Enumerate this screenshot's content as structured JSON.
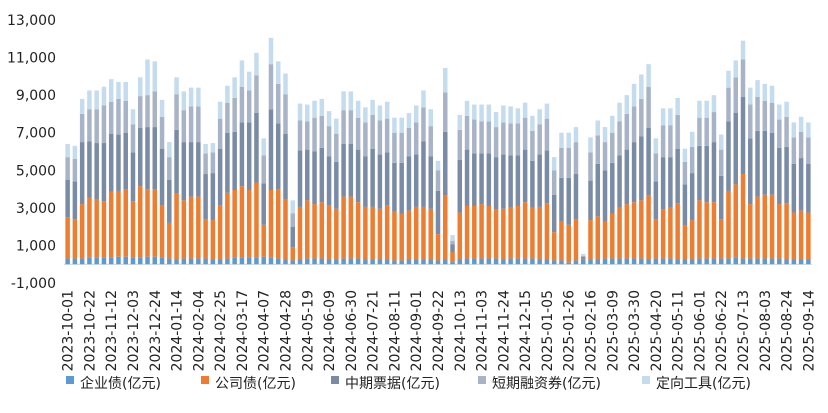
{
  "chart_data": {
    "type": "bar",
    "stacked": true,
    "categories": [
      "2023-10-01",
      "2023-10-08",
      "2023-10-15",
      "2023-10-22",
      "2023-10-29",
      "2023-11-05",
      "2023-11-12",
      "2023-11-19",
      "2023-11-26",
      "2023-12-03",
      "2023-12-10",
      "2023-12-17",
      "2023-12-24",
      "2023-12-31",
      "2024-01-07",
      "2024-01-14",
      "2024-01-21",
      "2024-01-28",
      "2024-02-04",
      "2024-02-11",
      "2024-02-18",
      "2024-02-25",
      "2024-03-03",
      "2024-03-10",
      "2024-03-17",
      "2024-03-24",
      "2024-03-31",
      "2024-04-07",
      "2024-04-14",
      "2024-04-21",
      "2024-04-28",
      "2024-05-05",
      "2024-05-12",
      "2024-05-19",
      "2024-05-26",
      "2024-06-02",
      "2024-06-09",
      "2024-06-16",
      "2024-06-23",
      "2024-06-30",
      "2024-07-07",
      "2024-07-14",
      "2024-07-21",
      "2024-07-28",
      "2024-08-04",
      "2024-08-11",
      "2024-08-18",
      "2024-08-25",
      "2024-09-01",
      "2024-09-08",
      "2024-09-15",
      "2024-09-22",
      "2024-09-29",
      "2024-10-06",
      "2024-10-13",
      "2024-10-20",
      "2024-10-27",
      "2024-11-03",
      "2024-11-10",
      "2024-11-17",
      "2024-11-24",
      "2024-12-01",
      "2024-12-08",
      "2024-12-15",
      "2024-12-22",
      "2024-12-29",
      "2025-01-05",
      "2025-01-12",
      "2025-01-19",
      "2025-01-26",
      "2025-02-02",
      "2025-02-09",
      "2025-02-16",
      "2025-02-23",
      "2025-03-02",
      "2025-03-09",
      "2025-03-16",
      "2025-03-23",
      "2025-03-30",
      "2025-04-06",
      "2025-04-13",
      "2025-04-20",
      "2025-04-27",
      "2025-05-04",
      "2025-05-11",
      "2025-05-18",
      "2025-05-25",
      "2025-06-01",
      "2025-06-08",
      "2025-06-15",
      "2025-06-22",
      "2025-06-29",
      "2025-07-06",
      "2025-07-13",
      "2025-07-20",
      "2025-07-27",
      "2025-08-03",
      "2025-08-10",
      "2025-08-17",
      "2025-08-24",
      "2025-08-31",
      "2025-09-07",
      "2025-09-14"
    ],
    "tick_labels": [
      "2023-10-01",
      "2023-10-22",
      "2023-11-12",
      "2023-12-03",
      "2023-12-24",
      "2024-01-14",
      "2024-02-04",
      "2024-02-25",
      "2024-03-17",
      "2024-04-07",
      "2024-04-28",
      "2024-05-19",
      "2024-06-09",
      "2024-06-30",
      "2024-07-21",
      "2024-08-11",
      "2024-09-01",
      "2024-09-22",
      "2024-10-13",
      "2024-11-03",
      "2024-11-24",
      "2024-12-15",
      "2025-01-05",
      "2025-01-26",
      "2025-02-16",
      "2025-03-09",
      "2025-03-30",
      "2025-04-20",
      "2025-05-11",
      "2025-06-01",
      "2025-06-22",
      "2025-07-13",
      "2025-08-03",
      "2025-08-24",
      "2025-09-14"
    ],
    "series": [
      {
        "name": "企业债(亿元)",
        "color": "#5b9bd5",
        "values": [
          300,
          300,
          300,
          350,
          350,
          350,
          350,
          400,
          400,
          350,
          350,
          400,
          400,
          350,
          300,
          250,
          300,
          300,
          300,
          300,
          250,
          250,
          300,
          350,
          350,
          350,
          350,
          400,
          350,
          300,
          250,
          200,
          250,
          300,
          300,
          300,
          250,
          250,
          300,
          300,
          300,
          250,
          250,
          250,
          250,
          200,
          200,
          250,
          250,
          250,
          250,
          200,
          250,
          150,
          250,
          300,
          300,
          300,
          300,
          300,
          250,
          300,
          300,
          300,
          300,
          250,
          250,
          200,
          200,
          100,
          200,
          250,
          250,
          250,
          300,
          300,
          300,
          300,
          300,
          300,
          250,
          300,
          300,
          300,
          250,
          250,
          250,
          300,
          300,
          300,
          300,
          300,
          350,
          300,
          300,
          300,
          300,
          300,
          300,
          250,
          250,
          250,
          250
        ]
      },
      {
        "name": "公司债(亿元)",
        "color": "#ed7d31",
        "values": [
          2200,
          2100,
          2900,
          3200,
          3100,
          3000,
          3500,
          3500,
          3600,
          3000,
          3800,
          3600,
          3600,
          2800,
          1900,
          3500,
          3100,
          3300,
          3300,
          2100,
          2100,
          2900,
          3500,
          3600,
          3800,
          3600,
          4000,
          1700,
          3600,
          3700,
          3200,
          700,
          2800,
          3100,
          2900,
          3000,
          2900,
          2700,
          3300,
          3300,
          3000,
          2800,
          2800,
          2700,
          2900,
          2600,
          2500,
          2600,
          2800,
          2800,
          2700,
          1400,
          3400,
          500,
          2500,
          2800,
          2800,
          2900,
          2800,
          2600,
          2700,
          2700,
          2800,
          3000,
          2700,
          2800,
          3000,
          1500,
          2100,
          2000,
          2200,
          50,
          2100,
          2300,
          2000,
          2400,
          2700,
          2900,
          3000,
          3100,
          3400,
          2100,
          2600,
          2700,
          3000,
          1800,
          2100,
          3100,
          3000,
          3000,
          2100,
          3600,
          3900,
          4500,
          2900,
          3300,
          3400,
          3400,
          2900,
          3000,
          2500,
          2600,
          2500
        ]
      },
      {
        "name": "中期票据(亿元)",
        "color": "#7a8ba6",
        "values": [
          2000,
          2000,
          3300,
          3000,
          3000,
          3100,
          3100,
          3000,
          3000,
          2600,
          3100,
          3300,
          3300,
          3000,
          2300,
          3400,
          3100,
          2900,
          2900,
          2400,
          2500,
          3000,
          3200,
          3100,
          3400,
          3600,
          3700,
          2200,
          4300,
          3500,
          3500,
          1100,
          3000,
          2700,
          2800,
          2900,
          2600,
          2500,
          2800,
          2800,
          2800,
          2700,
          3100,
          2900,
          2800,
          2600,
          2700,
          2900,
          2800,
          3500,
          2800,
          2300,
          3400,
          400,
          2800,
          3000,
          2800,
          2700,
          2800,
          2800,
          2900,
          2800,
          2700,
          2800,
          2500,
          2800,
          2800,
          2000,
          2300,
          2500,
          2400,
          100,
          2100,
          2800,
          2700,
          2700,
          2800,
          2900,
          3200,
          3400,
          3600,
          2000,
          2800,
          2700,
          2900,
          2200,
          2500,
          2900,
          3000,
          3200,
          2300,
          3700,
          3800,
          4100,
          3500,
          3500,
          3400,
          3300,
          3000,
          3000,
          2600,
          2800,
          2600
        ]
      },
      {
        "name": "短期融资券(亿元)",
        "color": "#a9b3c8",
        "values": [
          1200,
          1200,
          1500,
          1700,
          1800,
          2000,
          1700,
          1900,
          1700,
          1500,
          1700,
          1700,
          1900,
          1700,
          1200,
          1900,
          1700,
          1900,
          1900,
          1100,
          1100,
          1600,
          1600,
          1800,
          1900,
          1700,
          2000,
          1500,
          2400,
          2100,
          2100,
          700,
          1600,
          1500,
          1800,
          1700,
          1600,
          1500,
          1800,
          1800,
          1700,
          1800,
          1800,
          1800,
          1800,
          1600,
          1600,
          1500,
          1700,
          1800,
          1600,
          1100,
          2100,
          200,
          1600,
          1800,
          1800,
          1700,
          1700,
          1600,
          1700,
          1700,
          1700,
          1700,
          1600,
          1600,
          1700,
          1300,
          1600,
          1600,
          1700,
          50,
          1500,
          1500,
          1500,
          1600,
          1800,
          1900,
          1900,
          2000,
          2200,
          1500,
          1700,
          1700,
          1800,
          1200,
          1400,
          1500,
          1500,
          1600,
          1400,
          1800,
          1900,
          2000,
          1800,
          1800,
          1600,
          1600,
          1500,
          1600,
          1400,
          1400,
          1400
        ]
      },
      {
        "name": "定向工具(亿元)",
        "color": "#c5dcef",
        "values": [
          700,
          700,
          800,
          1000,
          1000,
          1000,
          1200,
          900,
          1000,
          800,
          1000,
          1900,
          1600,
          900,
          800,
          900,
          1000,
          1000,
          1000,
          500,
          500,
          900,
          900,
          1100,
          1400,
          1000,
          1200,
          900,
          1400,
          1200,
          1100,
          700,
          900,
          900,
          900,
          900,
          800,
          800,
          1000,
          1000,
          900,
          800,
          800,
          800,
          900,
          800,
          800,
          800,
          900,
          900,
          900,
          500,
          1300,
          300,
          800,
          800,
          800,
          900,
          900,
          800,
          900,
          900,
          800,
          800,
          800,
          800,
          800,
          700,
          800,
          800,
          800,
          100,
          800,
          800,
          800,
          900,
          1000,
          1000,
          1200,
          1300,
          1200,
          800,
          900,
          900,
          900,
          700,
          800,
          900,
          900,
          900,
          800,
          900,
          900,
          1000,
          900,
          900,
          900,
          900,
          800,
          800,
          800,
          800,
          800
        ]
      }
    ],
    "ylim": [
      -1000,
      13000
    ],
    "yticks": [
      -1000,
      1000,
      3000,
      5000,
      7000,
      9000,
      11000,
      13000
    ],
    "ytick_labels": [
      "-1,000",
      "1,000",
      "3,000",
      "5,000",
      "7,000",
      "9,000",
      "11,000",
      "13,000"
    ],
    "grid": false,
    "legend_position": "bottom"
  }
}
